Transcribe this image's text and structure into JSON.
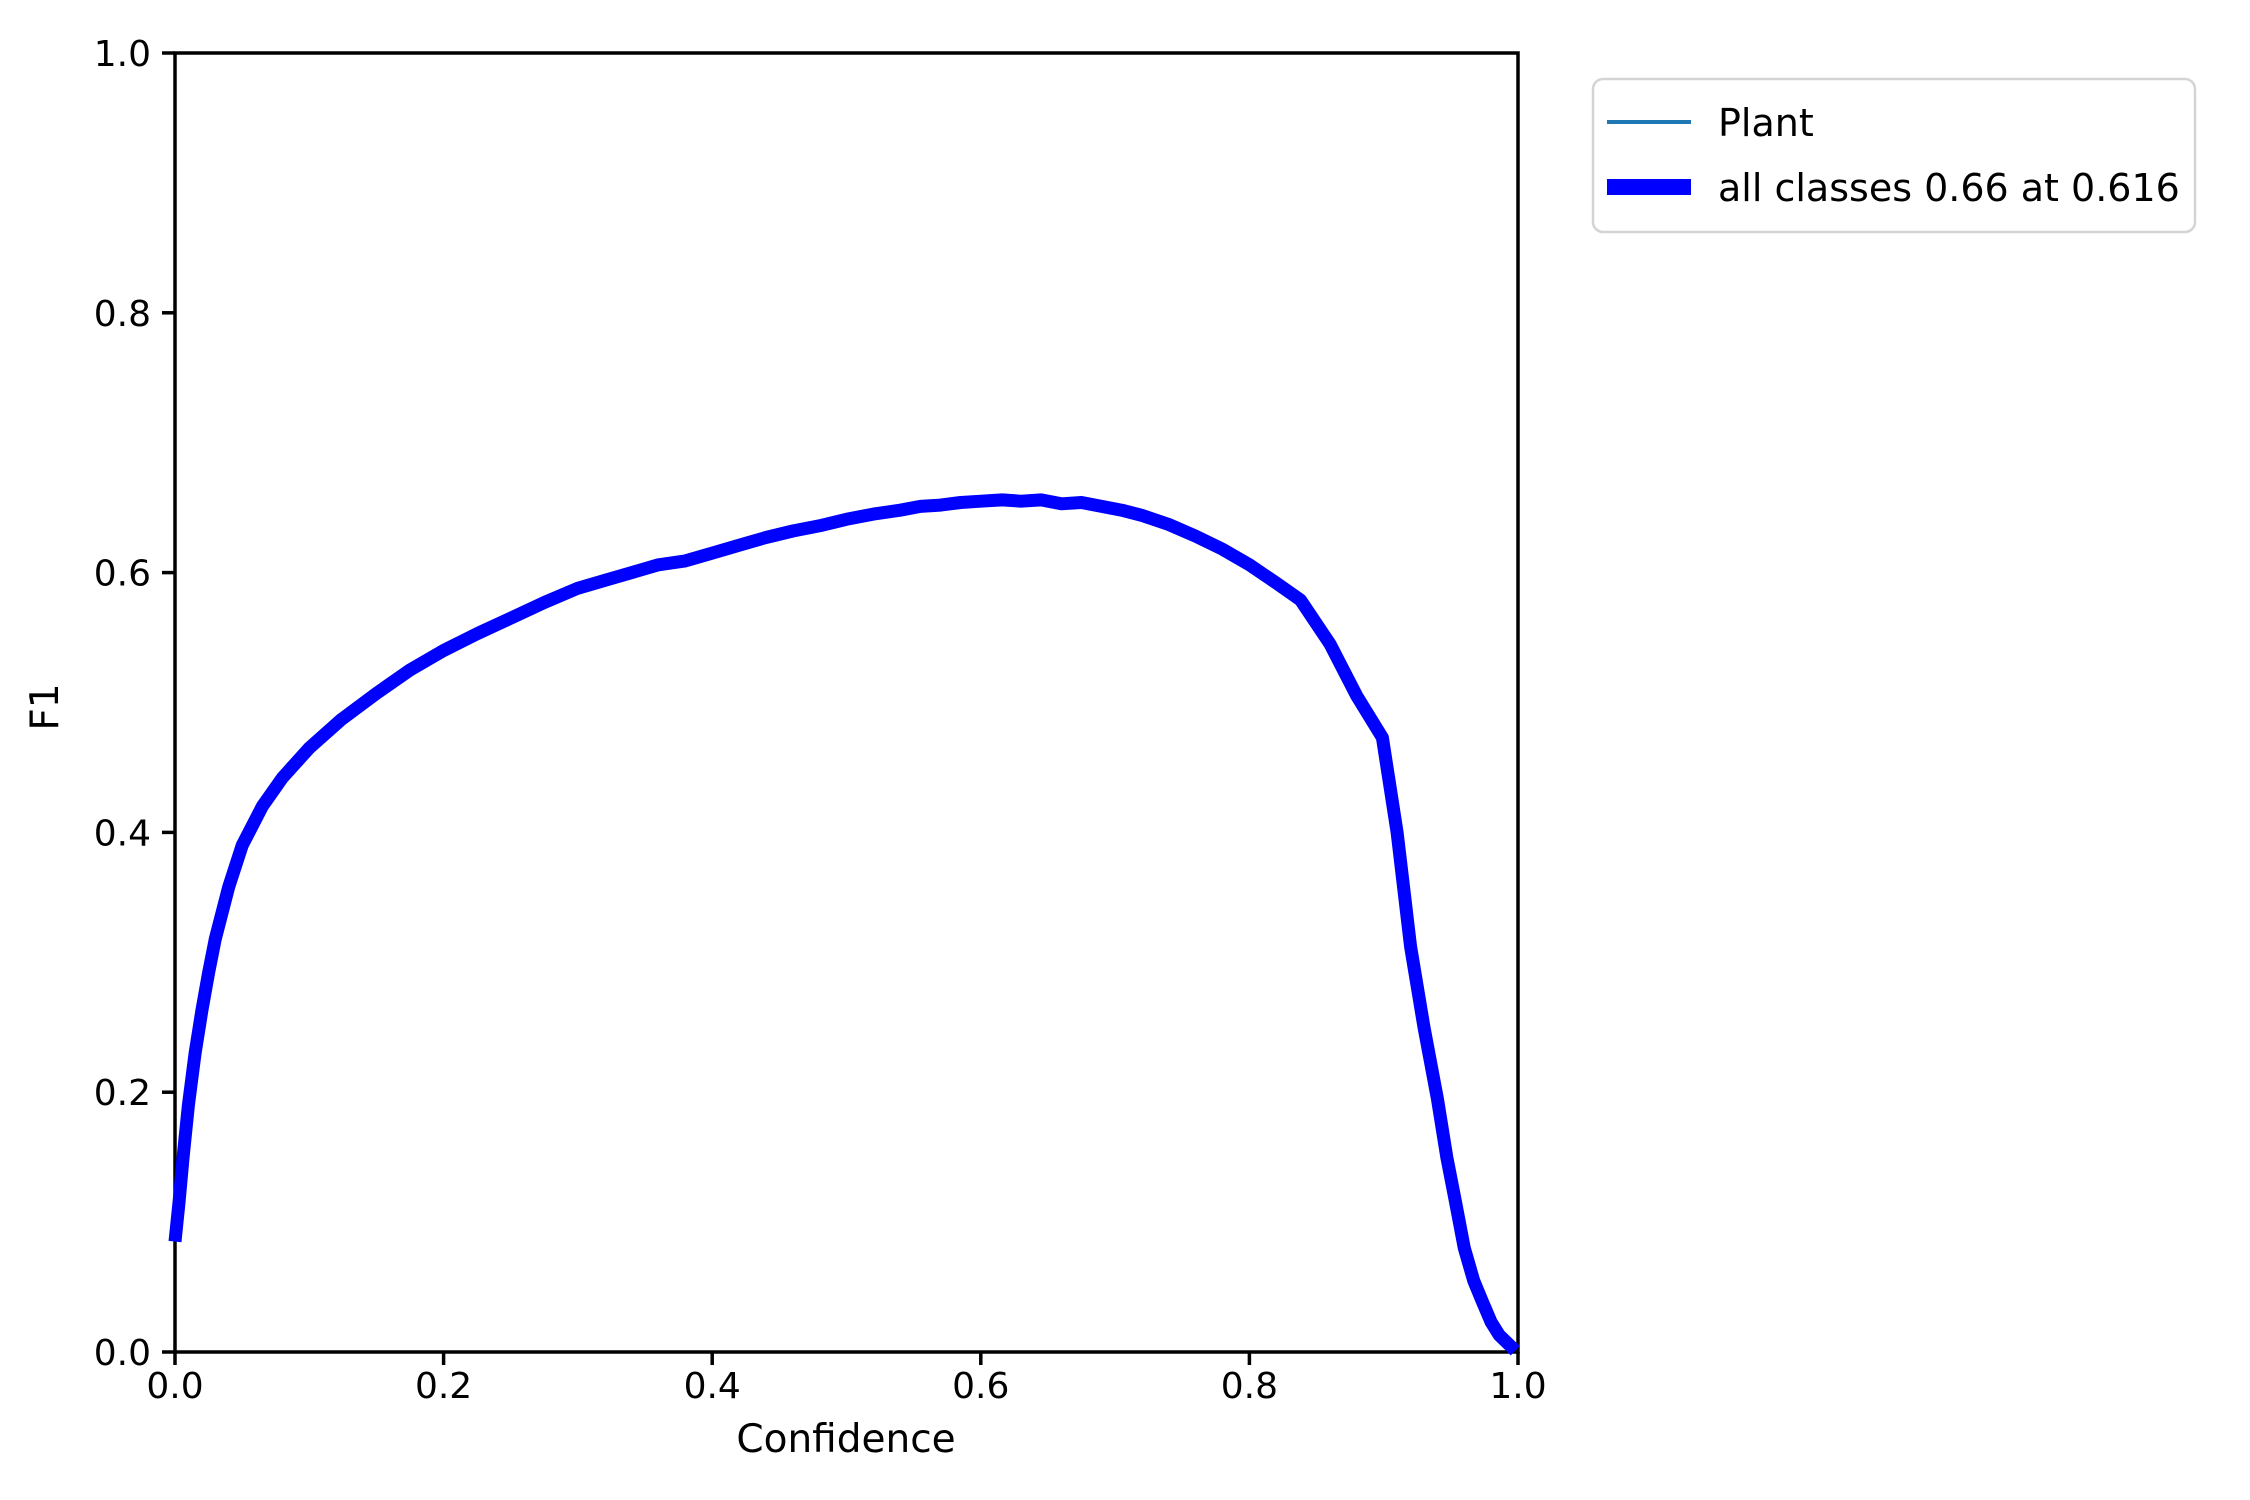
{
  "chart_data": {
    "type": "line",
    "title": "",
    "xlabel": "Confidence",
    "ylabel": "F1",
    "xlim": [
      0.0,
      1.0
    ],
    "ylim": [
      0.0,
      1.0
    ],
    "xticks": [
      "0.0",
      "0.2",
      "0.4",
      "0.6",
      "0.8",
      "1.0"
    ],
    "yticks": [
      "0.0",
      "0.2",
      "0.4",
      "0.6",
      "0.8",
      "1.0"
    ],
    "grid": false,
    "legend_position": "outside-top-right",
    "x": [
      0.0,
      0.003,
      0.006,
      0.01,
      0.015,
      0.02,
      0.025,
      0.03,
      0.04,
      0.05,
      0.065,
      0.08,
      0.1,
      0.124,
      0.15,
      0.175,
      0.2,
      0.225,
      0.25,
      0.275,
      0.3,
      0.32,
      0.34,
      0.36,
      0.38,
      0.4,
      0.42,
      0.44,
      0.46,
      0.48,
      0.5,
      0.52,
      0.54,
      0.555,
      0.57,
      0.585,
      0.6,
      0.616,
      0.63,
      0.645,
      0.66,
      0.675,
      0.69,
      0.705,
      0.72,
      0.74,
      0.76,
      0.78,
      0.8,
      0.82,
      0.838,
      0.86,
      0.88,
      0.899,
      0.91,
      0.92,
      0.93,
      0.94,
      0.947,
      0.953,
      0.96,
      0.967,
      0.973,
      0.98,
      0.986,
      0.991,
      0.995,
      0.998
    ],
    "y": [
      0.085,
      0.115,
      0.15,
      0.19,
      0.23,
      0.263,
      0.292,
      0.318,
      0.358,
      0.39,
      0.42,
      0.442,
      0.465,
      0.487,
      0.507,
      0.525,
      0.54,
      0.553,
      0.565,
      0.577,
      0.588,
      0.594,
      0.6,
      0.606,
      0.609,
      0.615,
      0.621,
      0.627,
      0.632,
      0.636,
      0.641,
      0.645,
      0.648,
      0.651,
      0.652,
      0.654,
      0.655,
      0.656,
      0.655,
      0.656,
      0.653,
      0.654,
      0.651,
      0.648,
      0.644,
      0.637,
      0.628,
      0.618,
      0.606,
      0.592,
      0.579,
      0.545,
      0.505,
      0.473,
      0.4,
      0.312,
      0.25,
      0.195,
      0.15,
      0.118,
      0.08,
      0.055,
      0.04,
      0.023,
      0.013,
      0.008,
      0.004,
      0.001
    ],
    "series": [
      {
        "name": "Plant",
        "color": "#1f77b4",
        "stroke_width": 4,
        "uses_shared_points": true
      },
      {
        "name": "all classes 0.66 at 0.616",
        "color": "#0000ff",
        "stroke_width": 13,
        "uses_shared_points": true
      }
    ],
    "peak": {
      "f1": 0.66,
      "confidence": 0.616
    }
  },
  "legend": {
    "items": [
      {
        "label": "Plant",
        "color": "#1f77b4",
        "swatch_thickness": 4
      },
      {
        "label": "all classes 0.66 at 0.616",
        "color": "#0000ff",
        "swatch_thickness": 16
      }
    ]
  },
  "colors": {
    "background": "#ffffff",
    "axis": "#000000",
    "legend_border": "#d4d4d4",
    "class_line": "#1f77b4",
    "all_classes_line": "#0000ff"
  }
}
